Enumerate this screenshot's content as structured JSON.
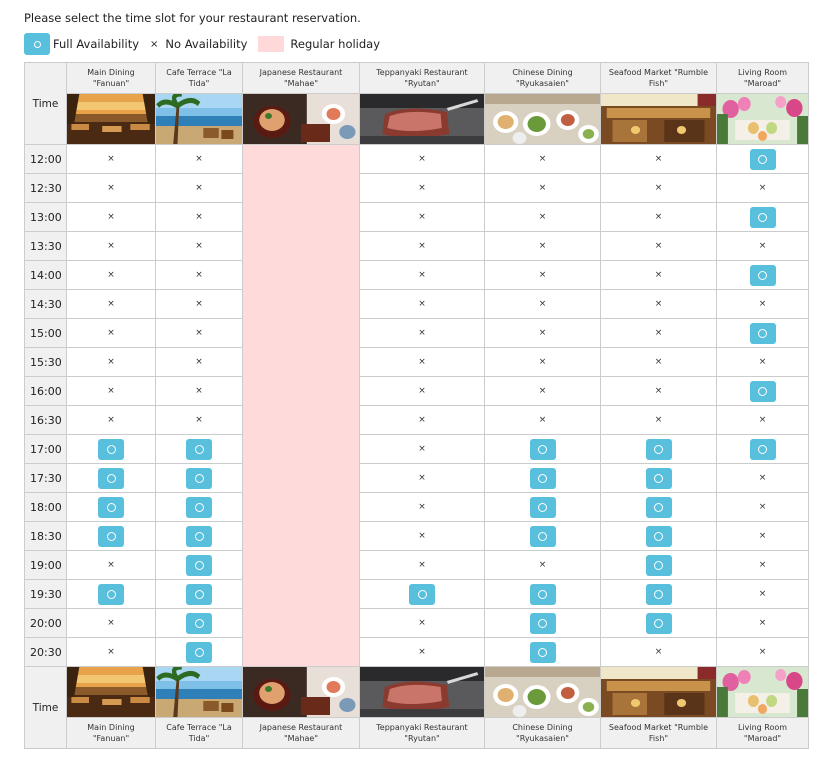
{
  "instruction": "Please select the time slot for your restaurant reservation.",
  "legend": {
    "available": "Full Availability",
    "unavailable_symbol": "×",
    "unavailable": "No Availability",
    "holiday": "Regular holiday"
  },
  "time_header": "Time",
  "cross": "×",
  "colors": {
    "available": "#58bfdc",
    "holiday": "#ffdada",
    "header_bg": "#f0f0f0"
  },
  "restaurants": [
    {
      "line1": "Main Dining",
      "line2": "\"Fanuan\"",
      "photo": "beach-sunset-terrace-photo",
      "holiday": false
    },
    {
      "line1": "Cafe Terrace \"La",
      "line2": "Tida\"",
      "photo": "palm-beach-terrace-photo",
      "holiday": false
    },
    {
      "line1": "Japanese Restaurant",
      "line2": "\"Mahae\"",
      "photo": "japanese-dishes-photo",
      "holiday": true
    },
    {
      "line1": "Teppanyaki Restaurant",
      "line2": "\"Ryutan\"",
      "photo": "steak-teppanyaki-photo",
      "holiday": false
    },
    {
      "line1": "Chinese Dining",
      "line2": "\"Ryukasaien\"",
      "photo": "chinese-dishes-photo",
      "holiday": false
    },
    {
      "line1": "Seafood Market \"Rumble",
      "line2": "Fish\"",
      "photo": "seafood-market-interior-photo",
      "holiday": false
    },
    {
      "line1": "Living Room",
      "line2": "\"Maroad\"",
      "photo": "flower-buffet-photo",
      "holiday": false
    }
  ],
  "slots": [
    {
      "time": "12:00",
      "avail": [
        0,
        0,
        null,
        0,
        0,
        0,
        1
      ]
    },
    {
      "time": "12:30",
      "avail": [
        0,
        0,
        null,
        0,
        0,
        0,
        0
      ]
    },
    {
      "time": "13:00",
      "avail": [
        0,
        0,
        null,
        0,
        0,
        0,
        1
      ]
    },
    {
      "time": "13:30",
      "avail": [
        0,
        0,
        null,
        0,
        0,
        0,
        0
      ]
    },
    {
      "time": "14:00",
      "avail": [
        0,
        0,
        null,
        0,
        0,
        0,
        1
      ]
    },
    {
      "time": "14:30",
      "avail": [
        0,
        0,
        null,
        0,
        0,
        0,
        0
      ]
    },
    {
      "time": "15:00",
      "avail": [
        0,
        0,
        null,
        0,
        0,
        0,
        1
      ]
    },
    {
      "time": "15:30",
      "avail": [
        0,
        0,
        null,
        0,
        0,
        0,
        0
      ]
    },
    {
      "time": "16:00",
      "avail": [
        0,
        0,
        null,
        0,
        0,
        0,
        1
      ]
    },
    {
      "time": "16:30",
      "avail": [
        0,
        0,
        null,
        0,
        0,
        0,
        0
      ]
    },
    {
      "time": "17:00",
      "avail": [
        1,
        1,
        null,
        0,
        1,
        1,
        1
      ]
    },
    {
      "time": "17:30",
      "avail": [
        1,
        1,
        null,
        0,
        1,
        1,
        0
      ]
    },
    {
      "time": "18:00",
      "avail": [
        1,
        1,
        null,
        0,
        1,
        1,
        0
      ]
    },
    {
      "time": "18:30",
      "avail": [
        1,
        1,
        null,
        0,
        1,
        1,
        0
      ]
    },
    {
      "time": "19:00",
      "avail": [
        0,
        1,
        null,
        0,
        0,
        1,
        0
      ]
    },
    {
      "time": "19:30",
      "avail": [
        1,
        1,
        null,
        1,
        1,
        1,
        0
      ]
    },
    {
      "time": "20:00",
      "avail": [
        0,
        1,
        null,
        0,
        1,
        1,
        0
      ]
    },
    {
      "time": "20:30",
      "avail": [
        0,
        1,
        null,
        0,
        1,
        0,
        0
      ]
    }
  ]
}
